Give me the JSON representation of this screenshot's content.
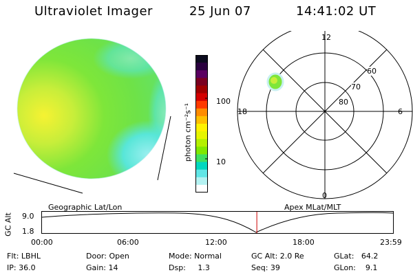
{
  "header": {
    "title": "Ultraviolet Imager",
    "date": "25 Jun 07",
    "time": "14:41:02 UT"
  },
  "colorbar": {
    "unit_label": "photon cm⁻²s⁻¹",
    "ticks": [
      "100",
      "10"
    ],
    "colors": [
      "#0b0b1e",
      "#2a003f",
      "#5a0060",
      "#7a0020",
      "#a00000",
      "#d40000",
      "#ff3a00",
      "#ff8c00",
      "#ffc000",
      "#fff200",
      "#e6f500",
      "#b4f000",
      "#80e800",
      "#40e060",
      "#00d8c0",
      "#60e6e6",
      "#b4f2f2",
      "#ffffff"
    ]
  },
  "polar": {
    "mlt_labels": {
      "top": "12",
      "left": "18",
      "right": "6",
      "bottom": "0"
    },
    "lat_labels": [
      "60",
      "70",
      "80"
    ]
  },
  "timeline": {
    "left_label": "Geographic Lat/Lon",
    "right_label": "Apex MLat/MLT",
    "axis_title": "GC Alt",
    "y_ticks": [
      "9.0",
      "1.8"
    ],
    "x_ticks": [
      "00:00",
      "06:00",
      "12:00",
      "18:00",
      "23:59"
    ],
    "current_time_fraction": 0.612
  },
  "status": {
    "flt": "Flt: LBHL",
    "ip": "IP: 36.0",
    "door": "Door: Open",
    "gain": "Gain: 14",
    "mode": "Mode: Normal",
    "dsp": "Dsp:     1.3",
    "gc_alt": "GC Alt: 2.0 Re",
    "seq": "Seq: 39",
    "glat": "GLat:   64.2",
    "glon": "GLon:    9.1"
  },
  "colors": {
    "marker": "#cc0000",
    "earth_green": "#7ee63a",
    "earth_yellow": "#f4f436",
    "earth_cyan": "#58e6e0"
  }
}
